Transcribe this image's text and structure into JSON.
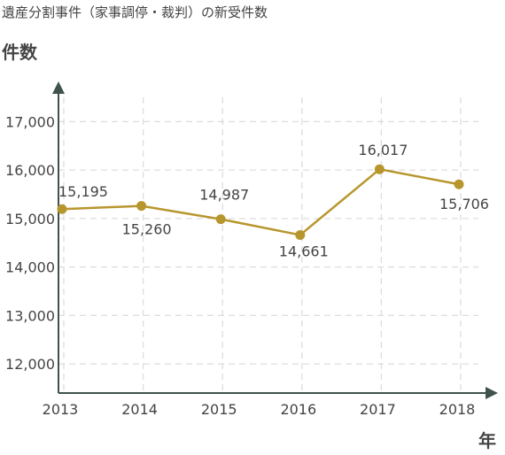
{
  "chart_data": {
    "type": "line",
    "title": "遺産分割事件（家事調停・裁判）の新受件数",
    "ylabel": "件数",
    "xlabel": "年",
    "categories": [
      "2013",
      "2014",
      "2015",
      "2016",
      "2017",
      "2018"
    ],
    "values": [
      15195,
      15260,
      14987,
      14661,
      16017,
      15706
    ],
    "data_labels": [
      "15,195",
      "15,260",
      "14,987",
      "14,661",
      "16,017",
      "15,706"
    ],
    "yticks": [
      12000,
      13000,
      14000,
      15000,
      16000,
      17000
    ],
    "ytick_labels": [
      "12,000",
      "13,000",
      "14,000",
      "15,000",
      "16,000",
      "17,000"
    ],
    "ylim": [
      11400,
      17500
    ],
    "grid": true,
    "line_color": "#b8962e",
    "grid_color": "#dddddd",
    "axis_color": "#3f524c"
  }
}
